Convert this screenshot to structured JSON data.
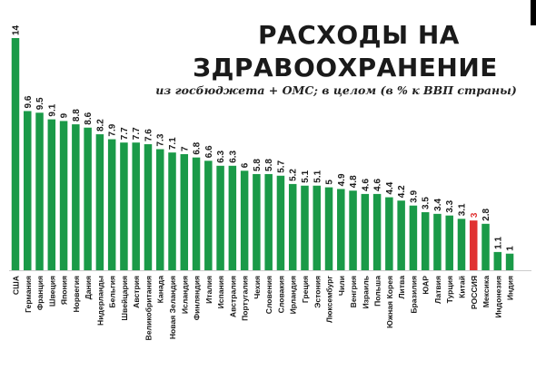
{
  "title_line1": "РАСХОДЫ НА",
  "title_line2": "ЗДРАВООХРАНЕНИЕ",
  "subtitle": "из госбюджета + ОМС; в целом (в % к ВВП страны)",
  "colors": {
    "bar": "#1a9a48",
    "highlight": "#e03232",
    "text": "#1a1a1a"
  },
  "chart_data": {
    "type": "bar",
    "title": "РАСХОДЫ НА ЗДРАВООХРАНЕНИЕ",
    "subtitle": "из госбюджета + ОМС; в целом (в % к ВВП страны)",
    "xlabel": "",
    "ylabel": "",
    "grid": false,
    "highlight_category": "РОССИЯ",
    "categories": [
      "США",
      "Германия",
      "Франция",
      "Швеция",
      "Япония",
      "Норвегия",
      "Дания",
      "Нидерланды",
      "Бельгия",
      "Швейцария",
      "Австрия",
      "Великобритания",
      "Канада",
      "Новая Зеландия",
      "Исландия",
      "Финляндия",
      "Италия",
      "Испания",
      "Австралия",
      "Португалия",
      "Чехия",
      "Словения",
      "Словакия",
      "Ирландия",
      "Греция",
      "Эстония",
      "Люксембург",
      "Чили",
      "Венгрия",
      "Израиль",
      "Польша",
      "Южная Корея",
      "Литва",
      "Бразилия",
      "ЮАР",
      "Латвия",
      "Турция",
      "Китай",
      "РОССИЯ",
      "Мексика",
      "Индонезия",
      "Индия"
    ],
    "values": [
      14,
      9.6,
      9.5,
      9.1,
      9,
      8.8,
      8.6,
      8.2,
      7.9,
      7.7,
      7.7,
      7.6,
      7.3,
      7.1,
      7,
      6.8,
      6.6,
      6.3,
      6.3,
      6,
      5.8,
      5.8,
      5.7,
      5.2,
      5.1,
      5.1,
      5,
      4.9,
      4.8,
      4.6,
      4.6,
      4.4,
      4.2,
      3.9,
      3.5,
      3.4,
      3.3,
      3.1,
      3,
      2.8,
      1.1,
      1
    ],
    "labels": [
      "14",
      "9.6",
      "9.5",
      "9.1",
      "9",
      "8.8",
      "8.6",
      "8.2",
      "7.9",
      "7.7",
      "7.7",
      "7.6",
      "7.3",
      "7.1",
      "7",
      "6.8",
      "6.6",
      "6.3",
      "6.3",
      "6",
      "5.8",
      "5.8",
      "5.7",
      "5.2",
      "5.1",
      "5.1",
      "5",
      "4.9",
      "4.8",
      "4.6",
      "4.6",
      "4.4",
      "4.2",
      "3.9",
      "3.5",
      "3.4",
      "3.3",
      "3.1",
      "3",
      "2.8",
      "1.1",
      "1"
    ],
    "ylim": [
      0,
      14
    ]
  }
}
